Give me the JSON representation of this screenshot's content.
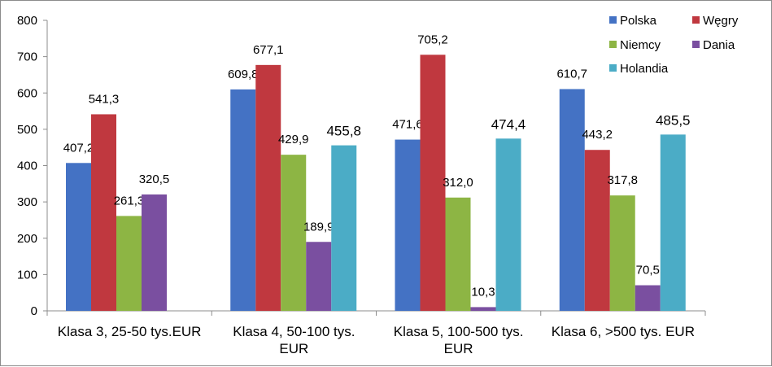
{
  "chart_data": {
    "type": "bar",
    "categories": [
      "Klasa 3, 25-50 tys.EUR",
      "Klasa 4, 50-100 tys. EUR",
      "Klasa 5, 100-500 tys. EUR",
      "Klasa 6, >500 tys. EUR"
    ],
    "category_label_lines": [
      [
        "Klasa 3, 25-50 tys.EUR"
      ],
      [
        "Klasa 4, 50-100 tys.",
        "EUR"
      ],
      [
        "Klasa 5, 100-500 tys.",
        "EUR"
      ],
      [
        "Klasa 6, >500 tys. EUR"
      ]
    ],
    "series": [
      {
        "name": "Polska",
        "color": "#4472C4",
        "values": [
          407.2,
          609.8,
          471.6,
          610.7
        ],
        "labels": [
          "407,2",
          "609,8",
          "471,6",
          "610,7"
        ]
      },
      {
        "name": "Węgry",
        "color": "#C0383F",
        "values": [
          541.3,
          677.1,
          705.2,
          443.2
        ],
        "labels": [
          "541,3",
          "677,1",
          "705,2",
          "443,2"
        ]
      },
      {
        "name": "Niemcy",
        "color": "#8DB544",
        "values": [
          261.3,
          429.9,
          312.0,
          317.8
        ],
        "labels": [
          "261,3",
          "429,9",
          "312,0",
          "317,8"
        ]
      },
      {
        "name": "Dania",
        "color": "#7A4FA0",
        "values": [
          320.5,
          189.9,
          10.3,
          70.5
        ],
        "labels": [
          "320,5",
          "189,9",
          "10,3",
          "70,5"
        ]
      },
      {
        "name": "Holandia",
        "color": "#4BACC6",
        "values": [
          null,
          455.8,
          474.4,
          485.5
        ],
        "labels": [
          null,
          "455,8",
          "474,4",
          "485,5"
        ]
      }
    ],
    "yticks": [
      "0",
      "100",
      "200",
      "300",
      "400",
      "500",
      "600",
      "700",
      "800"
    ],
    "ylim": [
      0,
      800
    ],
    "grid": false,
    "legend_position": "top-right",
    "title": "",
    "xlabel": "",
    "ylabel": ""
  }
}
